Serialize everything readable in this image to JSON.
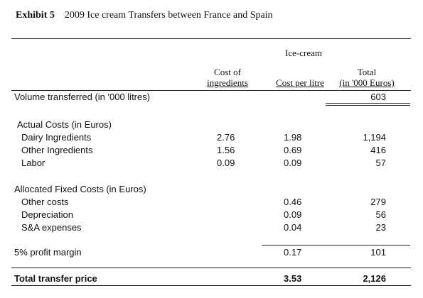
{
  "header": {
    "exhibit_label": "Exhibit 5",
    "title": "2009 Ice cream Transfers between France and Spain"
  },
  "columns": {
    "group_header": "Ice-cream",
    "col1_line1": "Cost of",
    "col1_line2": "ingredients",
    "col2": "Cost per litre",
    "col3_line1": "Total",
    "col3_line2": "(in '000 Euros)"
  },
  "volume": {
    "label": "Volume transferred (in '000 litres)",
    "total": "603"
  },
  "actual_costs": {
    "heading": "Actual Costs (in Euros)",
    "rows": [
      {
        "label": "Dairy Ingredients",
        "ingredients": "2.76",
        "per_litre": "1.98",
        "total": "1,194"
      },
      {
        "label": "Other Ingredients",
        "ingredients": "1.56",
        "per_litre": "0.69",
        "total": "416"
      },
      {
        "label": "Labor",
        "ingredients": "0.09",
        "per_litre": "0.09",
        "total": "57"
      }
    ]
  },
  "allocated_costs": {
    "heading": "Allocated Fixed Costs (in Euros)",
    "rows": [
      {
        "label": "Other costs",
        "per_litre": "0.46",
        "total": "279"
      },
      {
        "label": "Depreciation",
        "per_litre": "0.09",
        "total": "56"
      },
      {
        "label": "S&A expenses",
        "per_litre": "0.04",
        "total": "23"
      }
    ]
  },
  "profit": {
    "label": "5% profit margin",
    "per_litre": "0.17",
    "total": "101"
  },
  "transfer_price": {
    "label": "Total transfer price",
    "per_litre": "3.53",
    "total": "2,126"
  }
}
